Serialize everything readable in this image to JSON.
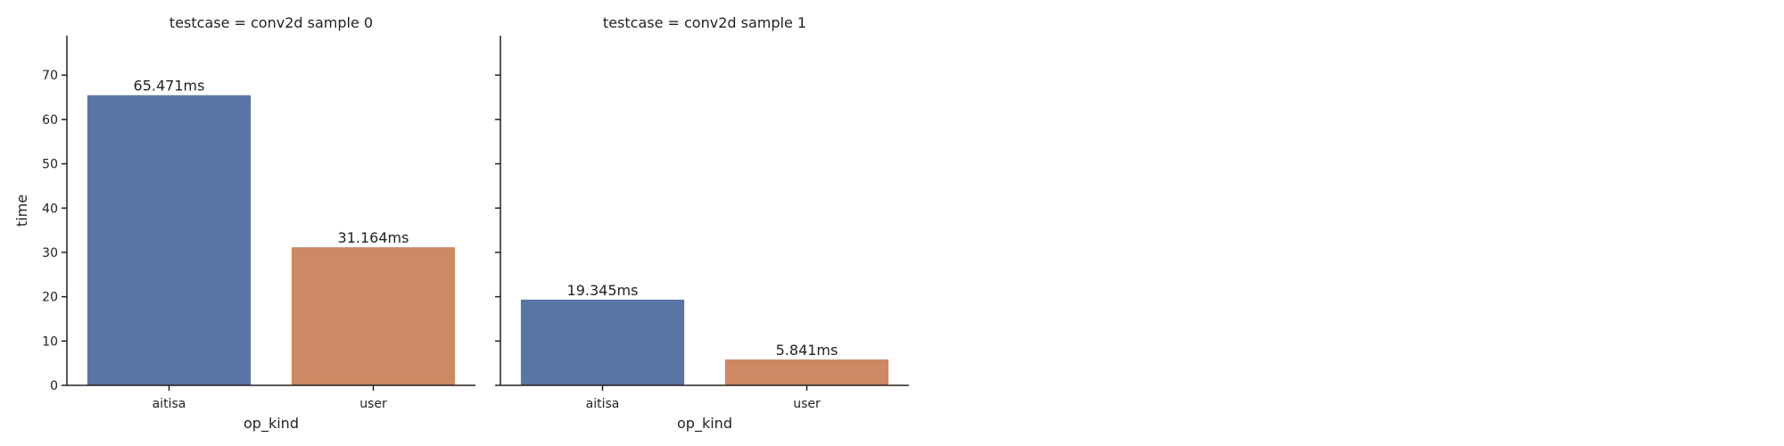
{
  "chart_data": [
    {
      "type": "bar",
      "title": "testcase = conv2d sample 0",
      "xlabel": "op_kind",
      "ylabel": "time",
      "categories": [
        "aitisa",
        "user"
      ],
      "values": [
        65.471,
        31.164
      ],
      "data_labels": [
        "65.471ms",
        "31.164ms"
      ],
      "bar_colors": [
        "#5975a4",
        "#cc8963"
      ],
      "ylim": [
        0,
        78.9
      ],
      "yticks": [
        0,
        10,
        20,
        30,
        40,
        50,
        60,
        70
      ],
      "grid": false
    },
    {
      "type": "bar",
      "title": "testcase = conv2d sample 1",
      "xlabel": "op_kind",
      "ylabel": "",
      "categories": [
        "aitisa",
        "user"
      ],
      "values": [
        19.345,
        5.841
      ],
      "data_labels": [
        "19.345ms",
        "5.841ms"
      ],
      "bar_colors": [
        "#5975a4",
        "#cc8963"
      ],
      "ylim": [
        0,
        78.9
      ],
      "yticks": [
        0,
        10,
        20,
        30,
        40,
        50,
        60,
        70
      ],
      "grid": false
    }
  ]
}
